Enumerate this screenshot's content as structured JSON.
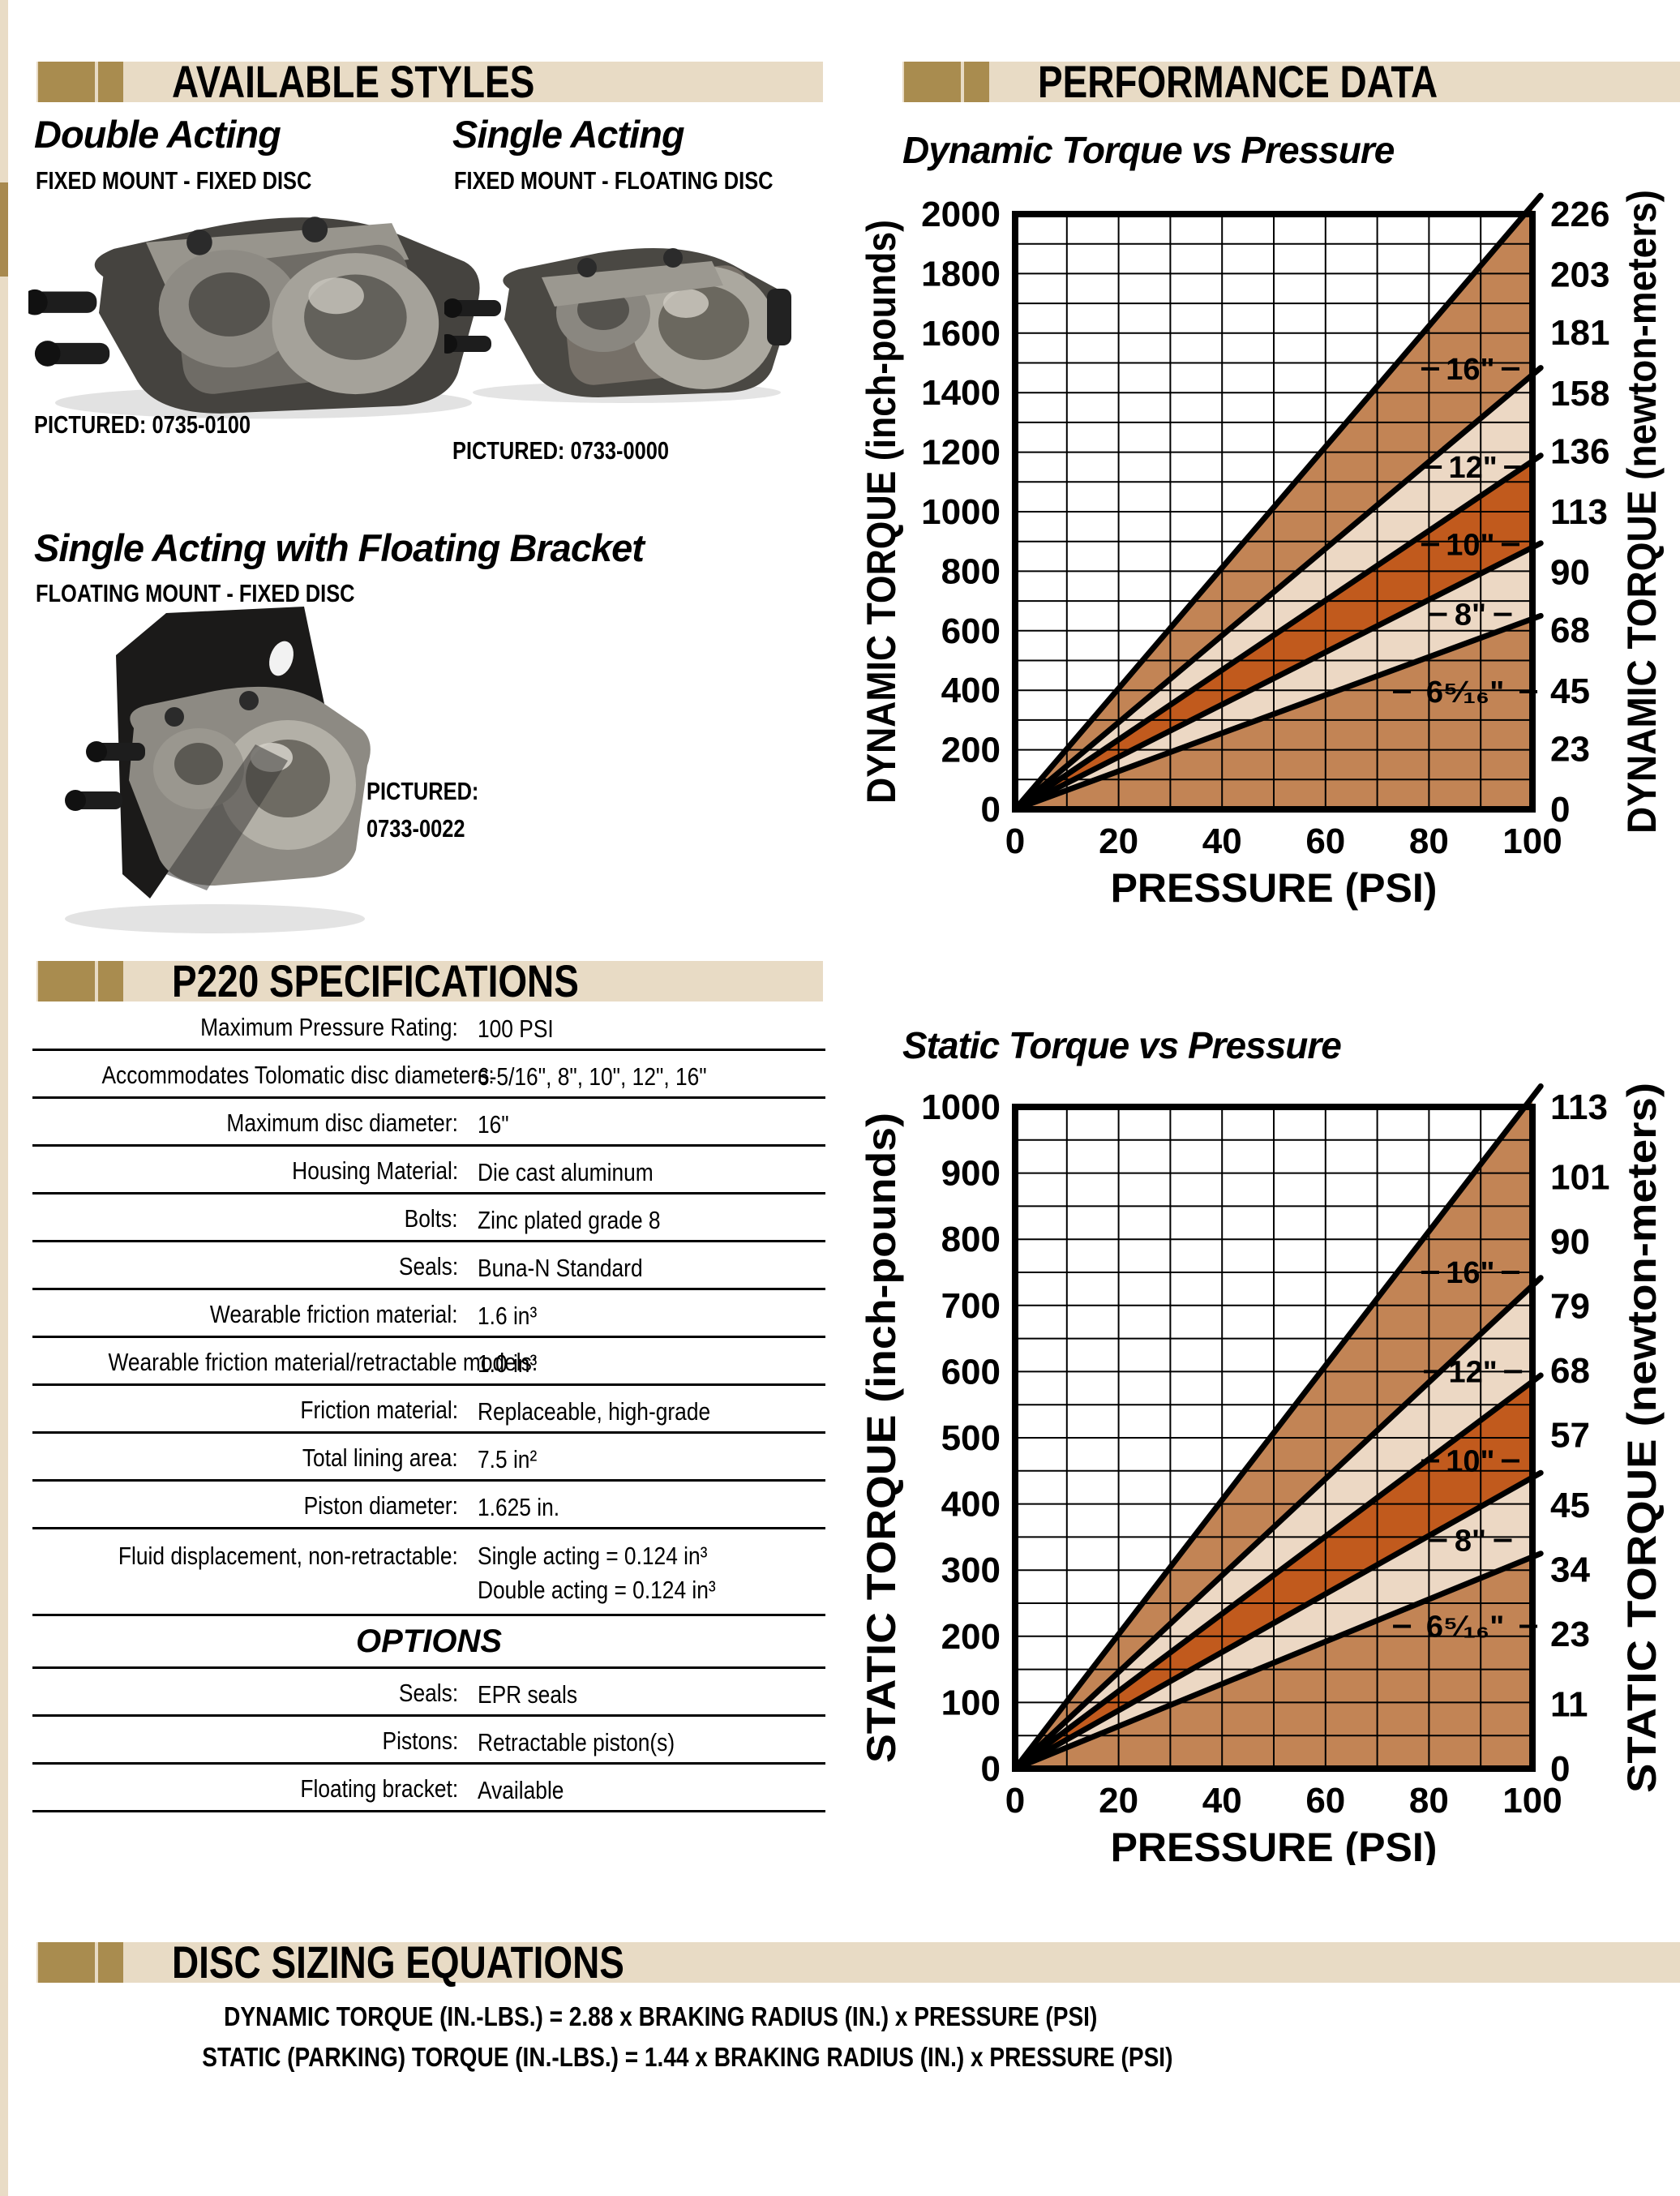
{
  "colors": {
    "tan_bar": "#e8dbc5",
    "khaki_accent": "#a98c4f",
    "band_medium": "#c28455",
    "band_pale": "#ecd8c4",
    "band_dark": "#c15a1d",
    "line_color": "#000000"
  },
  "available_styles": {
    "title": "AVAILABLE STYLES",
    "styles": [
      {
        "name": "Double Acting",
        "mount": "FIXED MOUNT - FIXED DISC",
        "pictured": "PICTURED:  0735-0100"
      },
      {
        "name": "Single Acting",
        "mount": "FIXED MOUNT - FLOATING DISC",
        "pictured": "PICTURED: 0733-0000"
      },
      {
        "name": "Single Acting with Floating Bracket",
        "mount": "FLOATING MOUNT - FIXED DISC",
        "pictured_line1": "PICTURED:",
        "pictured_line2": "0733-0022"
      }
    ]
  },
  "specifications": {
    "title": "P220 SPECIFICATIONS",
    "rows": [
      {
        "label": "Maximum Pressure Rating:",
        "value": "100 PSI"
      },
      {
        "label": "Accommodates Tolomatic disc diameters:",
        "value": "6-5/16\",  8\",  10\", 12\", 16\""
      },
      {
        "label": "Maximum disc diameter:",
        "value": "16\""
      },
      {
        "label": "Housing Material:",
        "value": "Die cast aluminum"
      },
      {
        "label": "Bolts:",
        "value": "Zinc plated grade 8"
      },
      {
        "label": "Seals:",
        "value": "Buna-N Standard"
      },
      {
        "label": "Wearable friction material:",
        "value": "1.6 in³"
      },
      {
        "label": "Wearable friction material/retractable models:",
        "value": "1.0 in³"
      },
      {
        "label": "Friction material:",
        "value": "Replaceable, high-grade"
      },
      {
        "label": "Total lining area:",
        "value": "7.5 in²"
      },
      {
        "label": "Piston diameter:",
        "value": "1.625 in."
      },
      {
        "label": "Fluid displacement, non-retractable:",
        "value": "Single acting = 0.124 in³",
        "value2": "Double acting = 0.124 in³"
      }
    ],
    "options_title": "OPTIONS",
    "options_rows": [
      {
        "label": "Seals:",
        "value": "EPR seals"
      },
      {
        "label": "Pistons:",
        "value": "Retractable piston(s)"
      },
      {
        "label": "Floating bracket:",
        "value": "Available"
      }
    ]
  },
  "performance": {
    "title": "PERFORMANCE DATA"
  },
  "equations": {
    "title": "DISC SIZING EQUATIONS",
    "lines": [
      "DYNAMIC TORQUE (IN.-LBS.) = 2.88 x BRAKING RADIUS (IN.) x PRESSURE (PSI)",
      "STATIC (PARKING) TORQUE (IN.-LBS.) = 1.44 x BRAKING RADIUS (IN.) x PRESSURE (PSI)"
    ]
  },
  "chart_data": [
    {
      "type": "area",
      "title": "Dynamic Torque vs Pressure",
      "xlabel": "PRESSURE (PSI)",
      "ylabel_left": "DYNAMIC TORQUE (inch-pounds)",
      "ylabel_right": "DYNAMIC TORQUE (newton-meters)",
      "xlim": [
        0,
        100
      ],
      "ylim": [
        0,
        2000
      ],
      "xticks": [
        0,
        20,
        40,
        60,
        80,
        100
      ],
      "yticks_left": [
        0,
        200,
        400,
        600,
        800,
        1000,
        1200,
        1400,
        1600,
        1800,
        2000
      ],
      "yticks_right": [
        0,
        23,
        45,
        68,
        90,
        113,
        136,
        158,
        181,
        203,
        226
      ],
      "x_grid_step": 10,
      "y_grid_step": 100,
      "grid": true,
      "legend_position": "in-band-labels",
      "series": [
        {
          "name": "6⁵⁄₁₆\"",
          "x": [
            0,
            100
          ],
          "values": [
            0,
            640
          ],
          "label_x": 87,
          "label_y": 395
        },
        {
          "name": "8\"",
          "x": [
            0,
            100
          ],
          "values": [
            0,
            880
          ],
          "label_x": 88,
          "label_y": 655
        },
        {
          "name": "10\"",
          "x": [
            0,
            100
          ],
          "values": [
            0,
            1170
          ],
          "label_x": 88,
          "label_y": 890
        },
        {
          "name": "12\"",
          "x": [
            0,
            100
          ],
          "values": [
            0,
            1460
          ],
          "label_x": 88.5,
          "label_y": 1150
        },
        {
          "name": "16\"",
          "x": [
            0,
            100
          ],
          "values": [
            0,
            2030
          ],
          "label_x": 88,
          "label_y": 1480
        }
      ],
      "band_colors_bottom_to_top": [
        "#c28455",
        "#ecd8c4",
        "#c15a1d",
        "#ecd8c4",
        "#c28455"
      ]
    },
    {
      "type": "area",
      "title": "Static Torque vs Pressure",
      "xlabel": "PRESSURE (PSI)",
      "ylabel_left": "STATIC TORQUE (inch-pounds)",
      "ylabel_right": "STATIC TORQUE (newton-meters)",
      "xlim": [
        0,
        100
      ],
      "ylim": [
        0,
        1000
      ],
      "xticks": [
        0,
        20,
        40,
        60,
        80,
        100
      ],
      "yticks_left": [
        0,
        100,
        200,
        300,
        400,
        500,
        600,
        700,
        800,
        900,
        1000
      ],
      "yticks_right": [
        0,
        11,
        23,
        34,
        45,
        57,
        68,
        79,
        90,
        101,
        113
      ],
      "x_grid_step": 10,
      "y_grid_step": 50,
      "grid": true,
      "legend_position": "in-band-labels",
      "series": [
        {
          "name": "6⁵⁄₁₆\"",
          "x": [
            0,
            100
          ],
          "values": [
            0,
            320
          ],
          "label_x": 87,
          "label_y": 215
        },
        {
          "name": "8\"",
          "x": [
            0,
            100
          ],
          "values": [
            0,
            440
          ],
          "label_x": 88,
          "label_y": 345
        },
        {
          "name": "10\"",
          "x": [
            0,
            100
          ],
          "values": [
            0,
            585
          ],
          "label_x": 88,
          "label_y": 465
        },
        {
          "name": "12\"",
          "x": [
            0,
            100
          ],
          "values": [
            0,
            730
          ],
          "label_x": 88.5,
          "label_y": 600
        },
        {
          "name": "16\"",
          "x": [
            0,
            100
          ],
          "values": [
            0,
            1015
          ],
          "label_x": 88,
          "label_y": 750
        }
      ],
      "band_colors_bottom_to_top": [
        "#c28455",
        "#ecd8c4",
        "#c15a1d",
        "#ecd8c4",
        "#c28455"
      ]
    }
  ]
}
